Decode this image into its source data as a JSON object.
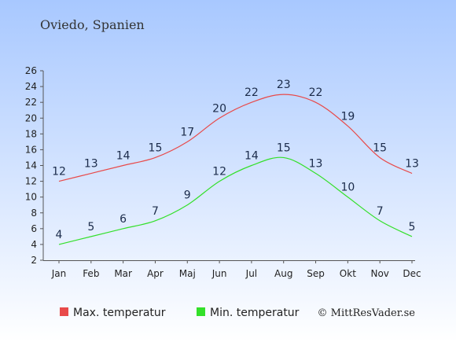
{
  "chart_data": {
    "type": "line",
    "title": "Oviedo, Spanien",
    "categories": [
      "Jan",
      "Feb",
      "Mar",
      "Apr",
      "Maj",
      "Jun",
      "Jul",
      "Aug",
      "Sep",
      "Okt",
      "Nov",
      "Dec"
    ],
    "series": [
      {
        "name": "Max. temperatur",
        "values": [
          12,
          13,
          14,
          15,
          17,
          20,
          22,
          23,
          22,
          19,
          15,
          13
        ],
        "color": "#e84a4a"
      },
      {
        "name": "Min. temperatur",
        "values": [
          4,
          5,
          6,
          7,
          9,
          12,
          14,
          15,
          13,
          10,
          7,
          5
        ],
        "color": "#33e02a"
      }
    ],
    "ylim": [
      2,
      26
    ],
    "yticks": [
      2,
      4,
      6,
      8,
      10,
      12,
      14,
      16,
      18,
      20,
      22,
      24,
      26
    ],
    "grid": false,
    "legend": "bottom",
    "background_gradient": [
      "#a8c8ff",
      "#ffffff"
    ]
  },
  "credit": "© MittResVader.se"
}
